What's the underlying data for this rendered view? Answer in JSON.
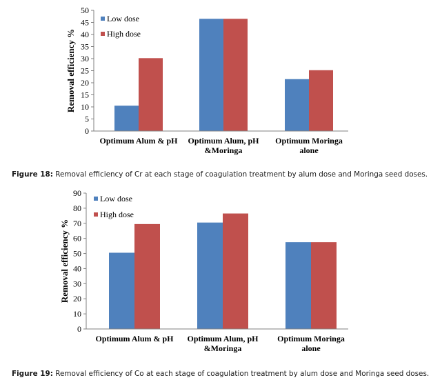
{
  "chart_data": [
    {
      "type": "bar",
      "categories": [
        "Optimum Alum & pH",
        "Optimum Alum, pH\n&Moringa",
        "Optimum Moringa\nalone"
      ],
      "series": [
        {
          "name": "Low dose",
          "values": [
            10.5,
            46.5,
            21.5
          ]
        },
        {
          "name": "High dose",
          "values": [
            30.2,
            46.5,
            25.2
          ]
        }
      ],
      "xlabel": "",
      "ylabel": "Removal efficiency %",
      "ylim": [
        0,
        50
      ],
      "yticks": [
        0,
        5,
        10,
        15,
        20,
        25,
        30,
        35,
        40,
        45,
        50
      ],
      "legend": "top-left",
      "grid": false,
      "colors": {
        "Low dose": "#4f81bd",
        "High dose": "#c0504d"
      }
    },
    {
      "type": "bar",
      "categories": [
        "Optimum Alum & pH",
        "Optimum Alum, pH\n&Moringa",
        "Optimum Moringa\nalone"
      ],
      "series": [
        {
          "name": "Low dose",
          "values": [
            50.5,
            70.5,
            57.5
          ]
        },
        {
          "name": "High dose",
          "values": [
            69.5,
            76.5,
            57.5
          ]
        }
      ],
      "xlabel": "",
      "ylabel": "Removal efficiency %",
      "ylim": [
        0,
        90
      ],
      "yticks": [
        0,
        10,
        20,
        30,
        40,
        50,
        60,
        70,
        80,
        90
      ],
      "legend": "top-left",
      "grid": false,
      "colors": {
        "Low dose": "#4f81bd",
        "High dose": "#c0504d"
      }
    }
  ],
  "captions": [
    {
      "label": "Figure 18:",
      "text": " Removal efficiency of Cr at each stage of coagulation treatment by alum dose and Moringa seed doses."
    },
    {
      "label": "Figure 19:",
      "text": " Removal efficiency of Co at each stage of coagulation treatment by alum dose and Moringa seed doses."
    }
  ]
}
